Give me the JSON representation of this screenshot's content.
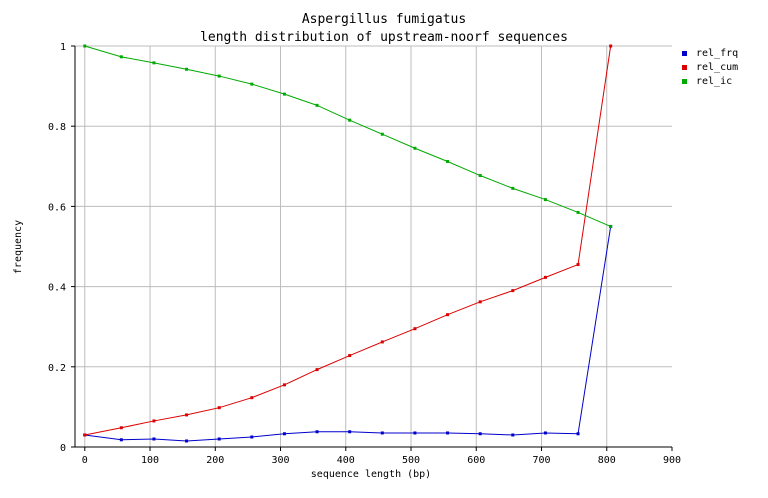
{
  "chart_data": {
    "type": "line",
    "title": "Aspergillus fumigatus",
    "subtitle": "length distribution of upstream-noorf sequences",
    "xlabel": "sequence length (bp)",
    "ylabel": "frequency",
    "xlim": [
      -15,
      900
    ],
    "ylim": [
      0,
      1
    ],
    "xticks": [
      0,
      100,
      200,
      300,
      400,
      500,
      600,
      700,
      800,
      900
    ],
    "yticks": [
      0,
      0.2,
      0.4,
      0.6,
      0.8,
      1
    ],
    "xtick_labels": [
      "0",
      "100",
      "200",
      "300",
      "400",
      "500",
      "600",
      "700",
      "800",
      "900"
    ],
    "ytick_labels": [
      "0",
      "0.2",
      "0.4",
      "0.6",
      "0.8",
      "1"
    ],
    "grid": true,
    "legend_position": "top-right",
    "x": [
      0,
      56,
      106,
      156,
      206,
      256,
      306,
      356,
      406,
      456,
      506,
      556,
      606,
      656,
      706,
      756,
      806
    ],
    "series": [
      {
        "name": "rel_frq",
        "color": "#0000cc",
        "values": [
          0.03,
          0.018,
          0.02,
          0.015,
          0.02,
          0.025,
          0.033,
          0.038,
          0.038,
          0.035,
          0.035,
          0.035,
          0.033,
          0.03,
          0.035,
          0.033,
          0.55
        ]
      },
      {
        "name": "rel_cum",
        "color": "#dd0000",
        "values": [
          0.03,
          0.048,
          0.065,
          0.08,
          0.098,
          0.123,
          0.155,
          0.193,
          0.228,
          0.262,
          0.295,
          0.33,
          0.362,
          0.39,
          0.423,
          0.455,
          1.0
        ]
      },
      {
        "name": "rel_ic",
        "color": "#00aa00",
        "values": [
          1.0,
          0.973,
          0.958,
          0.942,
          0.925,
          0.905,
          0.88,
          0.852,
          0.815,
          0.78,
          0.745,
          0.712,
          0.677,
          0.645,
          0.617,
          0.585,
          0.55
        ]
      }
    ]
  }
}
